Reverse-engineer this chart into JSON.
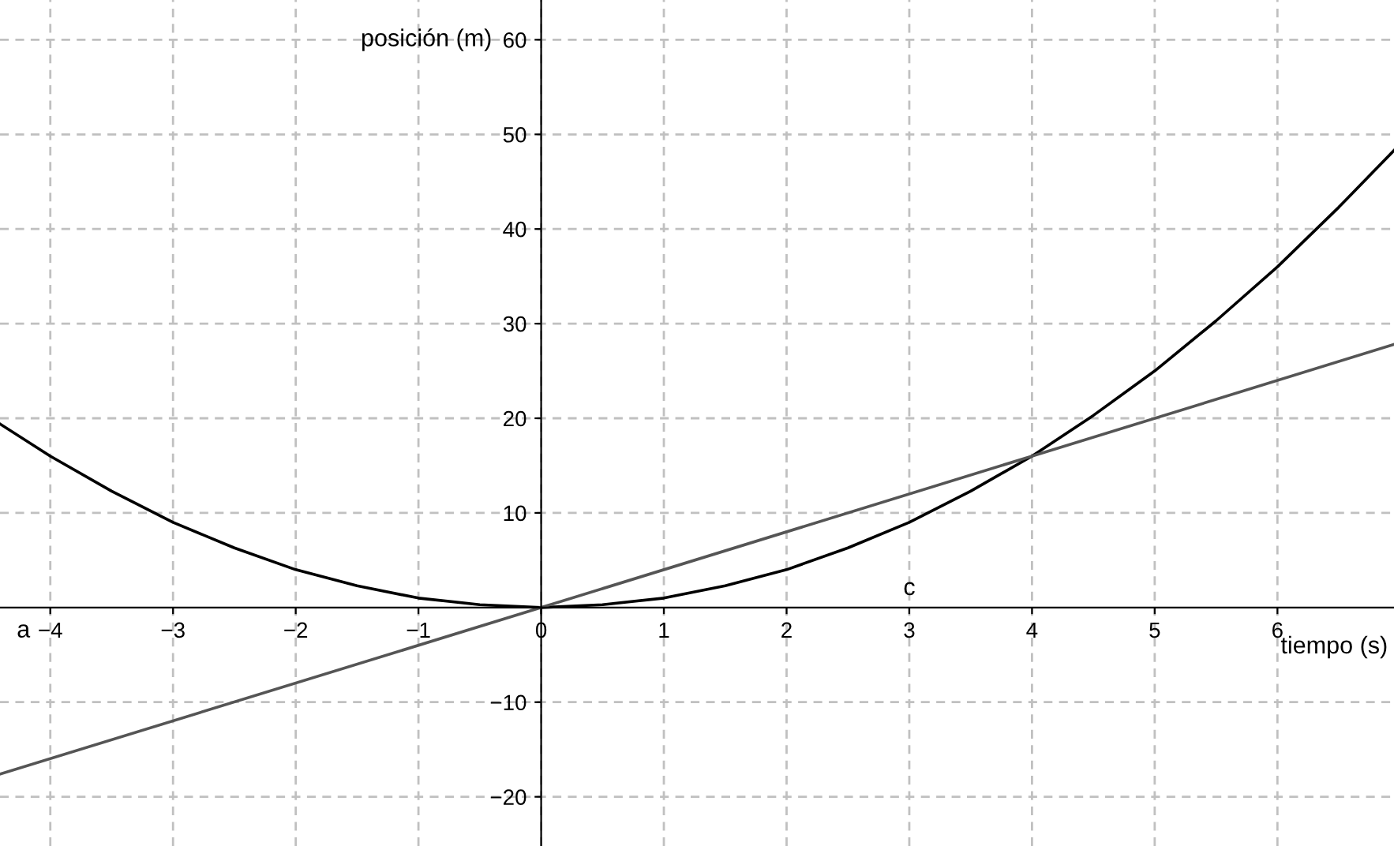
{
  "chart_data": {
    "type": "line",
    "xlabel": "tiempo (s)",
    "ylabel": "posición (m)",
    "xlim": [
      -4.41,
      6.95
    ],
    "ylim": [
      -25.2,
      64.2
    ],
    "xticks": [
      {
        "value": -4,
        "label": "−4"
      },
      {
        "value": -3,
        "label": "−3"
      },
      {
        "value": -2,
        "label": "−2"
      },
      {
        "value": -1,
        "label": "−1"
      },
      0,
      1,
      2,
      3,
      4,
      5,
      6
    ],
    "yticks": [
      {
        "value": -20,
        "label": "−20"
      },
      {
        "value": -10,
        "label": "−10"
      },
      10,
      20,
      30,
      40,
      50,
      60
    ],
    "grid": true,
    "legend": false,
    "marker": "none",
    "line_style": "solid",
    "annotations": [
      "a",
      "c"
    ],
    "series": [
      {
        "color": "#000000",
        "x": [
          -4.41,
          -4,
          -3.5,
          -3,
          -2.5,
          -2,
          -1.5,
          -1,
          -0.5,
          0,
          0.5,
          1,
          1.5,
          2,
          2.5,
          3,
          3.5,
          4,
          4.5,
          5,
          5.5,
          6,
          6.5,
          6.95
        ],
        "values": [
          19.4,
          16,
          12.3,
          9,
          6.3,
          4,
          2.3,
          1,
          0.3,
          0,
          0.3,
          1,
          2.3,
          4,
          6.3,
          9,
          12.3,
          16,
          20.3,
          25,
          30.3,
          36,
          42.3,
          48.3
        ]
      },
      {
        "color": "#555555",
        "x": [
          -4.41,
          0,
          4,
          6.95
        ],
        "values": [
          -17.6,
          0,
          16,
          27.8
        ]
      }
    ]
  }
}
